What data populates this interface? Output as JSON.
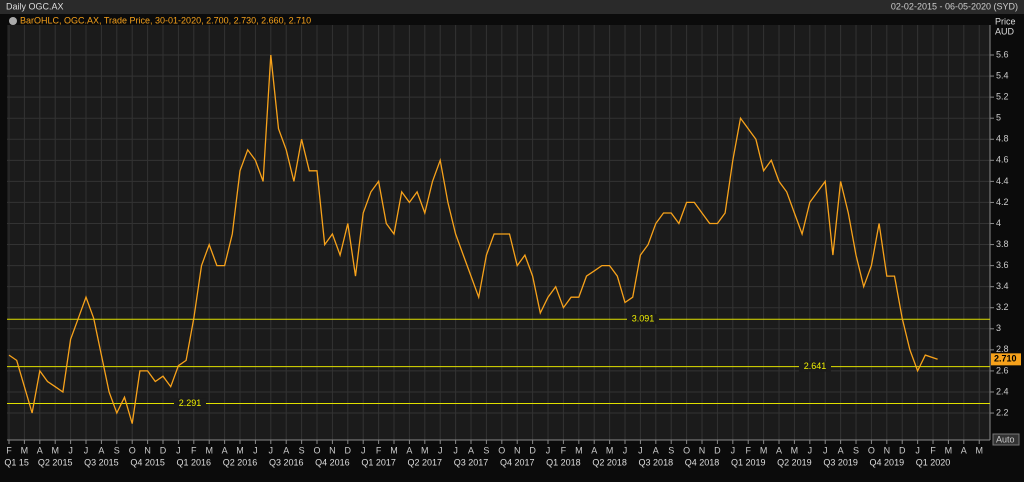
{
  "chart_data": {
    "type": "line",
    "title": "Daily OGC.AX",
    "date_range": "02-02-2015 - 06-05-2020 (SYD)",
    "legend_text": "BarOHLC, OGC.AX, Trade Price, 30-01-2020, 2.700, 2.730, 2.660, 2.710",
    "y_axis_label": "Price",
    "y_axis_unit": "AUD",
    "scale_button": "Auto",
    "x": [
      0,
      0.5,
      1,
      1.5,
      2,
      2.5,
      3,
      3.5,
      4,
      4.5,
      5,
      5.5,
      6,
      6.5,
      7,
      7.5,
      8,
      8.5,
      9,
      9.5,
      10,
      10.5,
      11,
      11.5,
      12,
      12.5,
      13,
      13.5,
      14,
      14.5,
      15,
      15.5,
      16,
      16.5,
      17,
      17.5,
      18,
      18.5,
      19,
      19.5,
      20,
      20.5,
      21,
      21.5,
      22,
      22.5,
      23,
      23.5,
      24,
      24.5,
      25,
      25.5,
      26,
      26.5,
      27,
      27.5,
      28,
      28.5,
      29,
      29.5,
      30,
      30.5,
      31,
      31.5,
      32,
      32.5,
      33,
      33.5,
      34,
      34.5,
      35,
      35.5,
      36,
      36.5,
      37,
      37.5,
      38,
      38.5,
      39,
      39.5,
      40,
      40.5,
      41,
      41.5,
      42,
      42.5,
      43,
      43.5,
      44,
      44.5,
      45,
      45.5,
      46,
      46.5,
      47,
      47.5,
      48,
      48.5,
      49,
      49.5,
      50,
      50.5,
      51,
      51.5,
      52,
      52.5,
      53,
      53.5,
      54,
      54.5,
      55,
      55.5,
      56,
      56.5,
      57,
      57.5,
      58,
      58.5,
      59,
      59.5,
      60.3
    ],
    "series": [
      {
        "color": "#f7a21b",
        "values": [
          2.75,
          2.7,
          2.45,
          2.2,
          2.6,
          2.5,
          2.45,
          2.4,
          2.9,
          3.1,
          3.3,
          3.1,
          2.75,
          2.4,
          2.2,
          2.35,
          2.1,
          2.6,
          2.6,
          2.5,
          2.55,
          2.45,
          2.65,
          2.7,
          3.1,
          3.6,
          3.8,
          3.6,
          3.6,
          3.9,
          4.5,
          4.7,
          4.6,
          4.4,
          5.6,
          4.9,
          4.7,
          4.4,
          4.8,
          4.5,
          4.5,
          3.8,
          3.9,
          3.7,
          4.0,
          3.5,
          4.1,
          4.3,
          4.4,
          4.0,
          3.9,
          4.3,
          4.2,
          4.3,
          4.1,
          4.4,
          4.6,
          4.2,
          3.9,
          3.7,
          3.5,
          3.3,
          3.7,
          3.9,
          3.9,
          3.9,
          3.6,
          3.7,
          3.5,
          3.15,
          3.3,
          3.4,
          3.2,
          3.3,
          3.3,
          3.5,
          3.55,
          3.6,
          3.6,
          3.5,
          3.25,
          3.3,
          3.7,
          3.8,
          4.0,
          4.1,
          4.1,
          4.0,
          4.2,
          4.2,
          4.1,
          4.0,
          4.0,
          4.1,
          4.6,
          5.0,
          4.9,
          4.8,
          4.5,
          4.6,
          4.4,
          4.3,
          4.1,
          3.9,
          4.2,
          4.3,
          4.4,
          3.7,
          4.4,
          4.1,
          3.7,
          3.4,
          3.6,
          4.0,
          3.5,
          3.5,
          3.1,
          2.8,
          2.6,
          2.75,
          2.71
        ]
      }
    ],
    "last_price": {
      "value": 2.71,
      "label": "2.710"
    },
    "levels": [
      3.091,
      2.641,
      2.291
    ],
    "ylim": [
      1.944,
      5.885
    ],
    "yticks": [
      2.2,
      2.4,
      2.6,
      2.8,
      3,
      3.2,
      3.4,
      3.6,
      3.8,
      4,
      4.2,
      4.4,
      4.6,
      4.8,
      5,
      5.2,
      5.4,
      5.6
    ],
    "xlim": [
      -0.13,
      63.7
    ],
    "xticks": [
      {
        "value": 0,
        "label": "F"
      },
      {
        "value": 1,
        "label": "M"
      },
      {
        "value": 2,
        "label": "A"
      },
      {
        "value": 3,
        "label": "M"
      },
      {
        "value": 4,
        "label": "J"
      },
      {
        "value": 5,
        "label": "J"
      },
      {
        "value": 6,
        "label": "A"
      },
      {
        "value": 7,
        "label": "S"
      },
      {
        "value": 8,
        "label": "O"
      },
      {
        "value": 9,
        "label": "N"
      },
      {
        "value": 10,
        "label": "D"
      },
      {
        "value": 11,
        "label": "J"
      },
      {
        "value": 12,
        "label": "F"
      },
      {
        "value": 13,
        "label": "M"
      },
      {
        "value": 14,
        "label": "A"
      },
      {
        "value": 15,
        "label": "M"
      },
      {
        "value": 16,
        "label": "J"
      },
      {
        "value": 17,
        "label": "J"
      },
      {
        "value": 18,
        "label": "A"
      },
      {
        "value": 19,
        "label": "S"
      },
      {
        "value": 20,
        "label": "O"
      },
      {
        "value": 21,
        "label": "N"
      },
      {
        "value": 22,
        "label": "D"
      },
      {
        "value": 23,
        "label": "J"
      },
      {
        "value": 24,
        "label": "F"
      },
      {
        "value": 25,
        "label": "M"
      },
      {
        "value": 26,
        "label": "A"
      },
      {
        "value": 27,
        "label": "M"
      },
      {
        "value": 28,
        "label": "J"
      },
      {
        "value": 29,
        "label": "J"
      },
      {
        "value": 30,
        "label": "A"
      },
      {
        "value": 31,
        "label": "S"
      },
      {
        "value": 32,
        "label": "O"
      },
      {
        "value": 33,
        "label": "N"
      },
      {
        "value": 34,
        "label": "D"
      },
      {
        "value": 35,
        "label": "J"
      },
      {
        "value": 36,
        "label": "F"
      },
      {
        "value": 37,
        "label": "M"
      },
      {
        "value": 38,
        "label": "A"
      },
      {
        "value": 39,
        "label": "M"
      },
      {
        "value": 40,
        "label": "J"
      },
      {
        "value": 41,
        "label": "J"
      },
      {
        "value": 42,
        "label": "A"
      },
      {
        "value": 43,
        "label": "S"
      },
      {
        "value": 44,
        "label": "O"
      },
      {
        "value": 45,
        "label": "N"
      },
      {
        "value": 46,
        "label": "D"
      },
      {
        "value": 47,
        "label": "J"
      },
      {
        "value": 48,
        "label": "F"
      },
      {
        "value": 49,
        "label": "M"
      },
      {
        "value": 50,
        "label": "A"
      },
      {
        "value": 51,
        "label": "M"
      },
      {
        "value": 52,
        "label": "J"
      },
      {
        "value": 53,
        "label": "J"
      },
      {
        "value": 54,
        "label": "A"
      },
      {
        "value": 55,
        "label": "S"
      },
      {
        "value": 56,
        "label": "O"
      },
      {
        "value": 57,
        "label": "N"
      },
      {
        "value": 58,
        "label": "D"
      },
      {
        "value": 59,
        "label": "J"
      },
      {
        "value": 60,
        "label": "F"
      },
      {
        "value": 61,
        "label": "M"
      },
      {
        "value": 62,
        "label": "A"
      },
      {
        "value": 63,
        "label": "M"
      }
    ],
    "quarter_labels": [
      {
        "value": 0.5,
        "label": "Q1 15"
      },
      {
        "value": 3,
        "label": "Q2 2015"
      },
      {
        "value": 6,
        "label": "Q3 2015"
      },
      {
        "value": 9,
        "label": "Q4 2015"
      },
      {
        "value": 12,
        "label": "Q1 2016"
      },
      {
        "value": 15,
        "label": "Q2 2016"
      },
      {
        "value": 18,
        "label": "Q3 2016"
      },
      {
        "value": 21,
        "label": "Q4 2016"
      },
      {
        "value": 24,
        "label": "Q1 2017"
      },
      {
        "value": 27,
        "label": "Q2 2017"
      },
      {
        "value": 30,
        "label": "Q3 2017"
      },
      {
        "value": 33,
        "label": "Q4 2017"
      },
      {
        "value": 36,
        "label": "Q1 2018"
      },
      {
        "value": 39,
        "label": "Q2 2018"
      },
      {
        "value": 42,
        "label": "Q3 2018"
      },
      {
        "value": 45,
        "label": "Q4 2018"
      },
      {
        "value": 48,
        "label": "Q1 2019"
      },
      {
        "value": 51,
        "label": "Q2 2019"
      },
      {
        "value": 54,
        "label": "Q3 2019"
      },
      {
        "value": 57,
        "label": "Q4 2019"
      },
      {
        "value": 60,
        "label": "Q1 2020"
      }
    ],
    "grid": true
  }
}
